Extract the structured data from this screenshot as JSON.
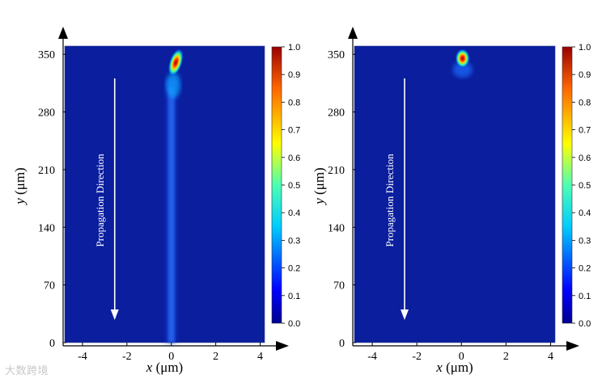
{
  "chart_data": [
    {
      "type": "heatmap",
      "panel": "left",
      "xlabel": "x (μm)",
      "ylabel": "y (μm)",
      "xlim": [
        -4.8,
        4.2
      ],
      "ylim": [
        0,
        360
      ],
      "xticks": [
        -4,
        -2,
        0,
        2,
        4
      ],
      "yticks": [
        0,
        70,
        140,
        210,
        280,
        350
      ],
      "colorbar": {
        "range": [
          0.0,
          1.0
        ],
        "ticks": [
          "0.0",
          "0.1",
          "0.2",
          "0.3",
          "0.4",
          "0.5",
          "0.6",
          "0.7",
          "0.8",
          "0.9",
          "1.0"
        ]
      },
      "annotation": "Propagation Direction",
      "beam": {
        "peak_x": 0.2,
        "peak_y": 340,
        "peak_intensity": 1.0,
        "background_intensity": 0.04,
        "faint_tail_intensity": 0.15,
        "tail_spans_full_length": true
      }
    },
    {
      "type": "heatmap",
      "panel": "right",
      "xlabel": "x (μm)",
      "ylabel": "y (μm)",
      "xlim": [
        -4.8,
        4.2
      ],
      "ylim": [
        0,
        360
      ],
      "xticks": [
        -4,
        -2,
        0,
        2,
        4
      ],
      "yticks": [
        0,
        70,
        140,
        210,
        280,
        350
      ],
      "colorbar": {
        "range": [
          0.0,
          1.0
        ],
        "ticks": [
          "0.0",
          "0.1",
          "0.2",
          "0.3",
          "0.4",
          "0.5",
          "0.6",
          "0.7",
          "0.8",
          "0.9",
          "1.0"
        ]
      },
      "annotation": "Propagation Direction",
      "beam": {
        "peak_x": 0.05,
        "peak_y": 345,
        "peak_intensity": 1.0,
        "background_intensity": 0.04,
        "faint_tail_intensity": 0.0,
        "tail_spans_full_length": false
      }
    }
  ],
  "watermark": "大数跨境",
  "colors": {
    "background": "#0a1e9e",
    "axis": "#000000",
    "annotation": "#ffffff"
  }
}
